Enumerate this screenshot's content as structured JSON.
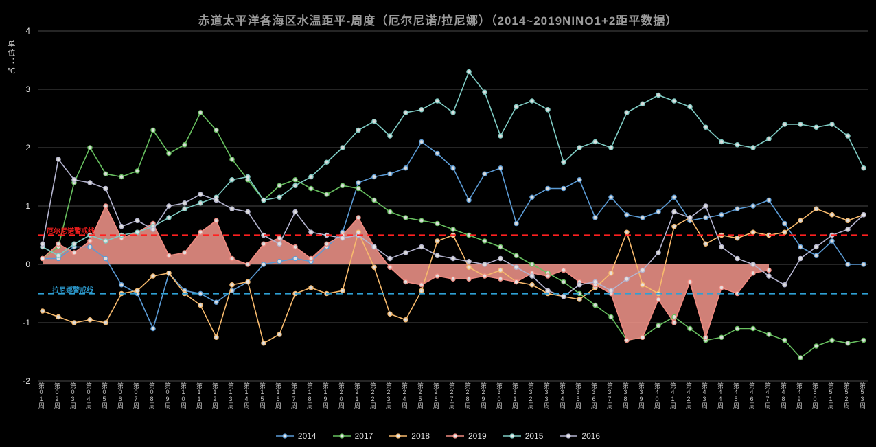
{
  "y_axis_unit_label": "单位：℃",
  "theme": {
    "background": "#000000",
    "grid_line": "#4a4a4a",
    "axis_text": "#e3e3e3",
    "x_label_text": "#c6c6c6",
    "title_text": "#9b9b9b",
    "legend_text": "#dcdcdc",
    "marker_fill": "#e8e8e8"
  },
  "thresholds": {
    "el_nino": {
      "value": 0.5,
      "label": "厄尔尼诺警戒线",
      "color": "#ff2020"
    },
    "la_nina": {
      "value": -0.5,
      "label": "拉尼娜警戒线",
      "color": "#2e9fd4"
    }
  },
  "chart_data": {
    "type": "line",
    "title": "赤道太平洋各海区水温距平-周度（厄尔尼诺/拉尼娜）（2014~2019NINO1+2距平数据）",
    "xlabel": "",
    "ylabel": "单位：℃",
    "ylim": [
      -2,
      4
    ],
    "yticks": [
      4,
      3,
      2,
      1,
      0,
      -1,
      -2
    ],
    "grid": true,
    "legend_position": "bottom",
    "categories": [
      "第01周",
      "第02周",
      "第03周",
      "第04周",
      "第05周",
      "第06周",
      "第07周",
      "第08周",
      "第09周",
      "第10周",
      "第11周",
      "第12周",
      "第13周",
      "第14周",
      "第15周",
      "第16周",
      "第17周",
      "第18周",
      "第19周",
      "第20周",
      "第21周",
      "第22周",
      "第23周",
      "第24周",
      "第25周",
      "第26周",
      "第27周",
      "第28周",
      "第29周",
      "第30周",
      "第31周",
      "第32周",
      "第33周",
      "第34周",
      "第35周",
      "第36周",
      "第37周",
      "第38周",
      "第39周",
      "第40周",
      "第41周",
      "第42周",
      "第43周",
      "第44周",
      "第45周",
      "第46周",
      "第47周",
      "第48周",
      "第49周",
      "第50周",
      "第51周",
      "第52周",
      "第53周"
    ],
    "series": [
      {
        "name": "2014",
        "kind": "line",
        "color": "#5b9bd5",
        "values": [
          0.1,
          0.1,
          0.3,
          0.3,
          0.1,
          -0.35,
          -0.5,
          -1.1,
          -0.15,
          -0.45,
          -0.5,
          -0.65,
          -0.45,
          -0.3,
          0.0,
          0.05,
          0.1,
          0.05,
          0.3,
          0.55,
          1.4,
          1.5,
          1.55,
          1.65,
          2.1,
          1.9,
          1.65,
          1.1,
          1.55,
          1.65,
          0.7,
          1.15,
          1.3,
          1.3,
          1.45,
          0.8,
          1.15,
          0.85,
          0.8,
          0.9,
          1.15,
          0.75,
          0.8,
          0.85,
          0.95,
          1.0,
          1.1,
          0.7,
          0.3,
          0.15,
          0.4,
          0.0,
          0.0
        ]
      },
      {
        "name": "2017",
        "kind": "line",
        "color": "#67bf5f",
        "values": [
          0.1,
          0.3,
          1.4,
          2.0,
          1.55,
          1.5,
          1.6,
          2.3,
          1.9,
          2.05,
          2.6,
          2.3,
          1.8,
          1.45,
          1.1,
          1.35,
          1.45,
          1.3,
          1.2,
          1.35,
          1.3,
          1.1,
          0.9,
          0.8,
          0.75,
          0.7,
          0.6,
          0.5,
          0.4,
          0.3,
          0.15,
          0.0,
          -0.15,
          -0.3,
          -0.5,
          -0.7,
          -0.9,
          -1.3,
          -1.25,
          -1.05,
          -0.9,
          -1.1,
          -1.3,
          -1.25,
          -1.1,
          -1.1,
          -1.2,
          -1.3,
          -1.6,
          -1.4,
          -1.3,
          -1.35,
          -1.3
        ]
      },
      {
        "name": "2018",
        "kind": "line",
        "color": "#f7ba6d",
        "values": [
          -0.8,
          -0.9,
          -1.0,
          -0.95,
          -1.0,
          -0.5,
          -0.45,
          -0.2,
          -0.15,
          -0.5,
          -0.7,
          -1.25,
          -0.35,
          -0.3,
          -1.35,
          -1.2,
          -0.5,
          -0.4,
          -0.5,
          -0.45,
          0.55,
          -0.05,
          -0.85,
          -0.95,
          -0.45,
          0.4,
          0.5,
          -0.05,
          -0.2,
          -0.1,
          -0.3,
          -0.35,
          -0.5,
          -0.55,
          -0.6,
          -0.4,
          -0.15,
          0.55,
          -0.35,
          -0.5,
          0.65,
          0.8,
          0.35,
          0.5,
          0.45,
          0.55,
          0.5,
          0.55,
          0.75,
          0.95,
          0.85,
          0.75,
          0.85
        ]
      },
      {
        "name": "2019",
        "kind": "area",
        "color": "#ef8a80",
        "fill": "rgba(244,150,140,0.85)",
        "values": [
          0.1,
          0.35,
          0.2,
          0.4,
          1.0,
          0.45,
          0.55,
          0.7,
          0.15,
          0.2,
          0.55,
          0.75,
          0.1,
          0.0,
          0.35,
          0.45,
          0.3,
          0.1,
          0.35,
          0.5,
          0.8,
          0.3,
          -0.05,
          -0.3,
          -0.35,
          -0.2,
          -0.25,
          -0.25,
          -0.2,
          -0.25,
          -0.3,
          -0.15,
          -0.2,
          -0.1,
          -0.3,
          -0.35,
          -0.5,
          -1.3,
          -1.25,
          -0.6,
          -1.0,
          -0.3,
          -1.25,
          -0.4,
          -0.5,
          -0.15,
          -0.1,
          null,
          null,
          null,
          null,
          null,
          null
        ]
      },
      {
        "name": "2015",
        "kind": "line",
        "color": "#7fccc4",
        "values": [
          0.3,
          0.15,
          0.35,
          0.5,
          0.4,
          0.5,
          0.55,
          0.65,
          0.8,
          0.95,
          1.05,
          1.15,
          1.45,
          1.5,
          1.1,
          1.15,
          1.35,
          1.5,
          1.75,
          2.0,
          2.3,
          2.45,
          2.2,
          2.6,
          2.65,
          2.8,
          2.6,
          3.3,
          2.95,
          2.2,
          2.7,
          2.8,
          2.65,
          1.75,
          2.0,
          2.1,
          2.0,
          2.6,
          2.75,
          2.9,
          2.8,
          2.7,
          2.35,
          2.1,
          2.05,
          2.0,
          2.15,
          2.4,
          2.4,
          2.35,
          2.4,
          2.2,
          1.65
        ]
      },
      {
        "name": "2016",
        "kind": "line",
        "color": "#b4b4cf",
        "values": [
          0.35,
          1.8,
          1.45,
          1.4,
          1.3,
          0.65,
          0.75,
          0.6,
          1.0,
          1.05,
          1.2,
          1.1,
          0.95,
          0.9,
          0.5,
          0.35,
          0.9,
          0.55,
          0.5,
          0.45,
          0.5,
          0.3,
          0.1,
          0.2,
          0.3,
          0.15,
          0.1,
          0.05,
          0.0,
          0.1,
          -0.05,
          -0.2,
          -0.45,
          -0.55,
          -0.35,
          -0.3,
          -0.45,
          -0.25,
          -0.1,
          0.2,
          0.9,
          0.8,
          1.0,
          0.3,
          0.1,
          0.0,
          -0.2,
          -0.35,
          0.1,
          0.3,
          0.5,
          0.6,
          0.85
        ]
      }
    ]
  }
}
